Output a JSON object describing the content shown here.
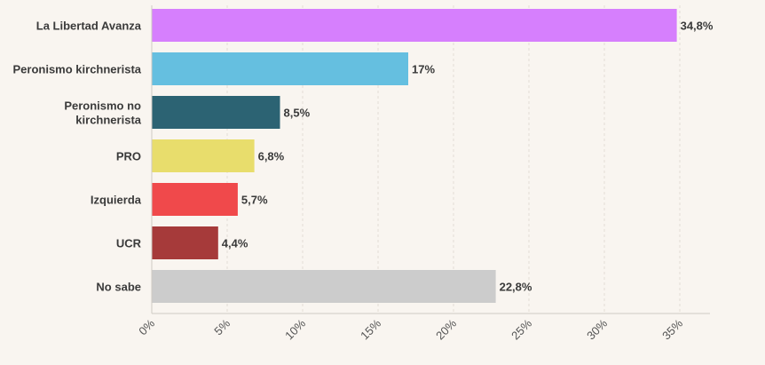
{
  "chart_data": {
    "type": "bar",
    "orientation": "horizontal",
    "title": "",
    "xlabel": "",
    "ylabel": "",
    "xlim": [
      0,
      37
    ],
    "grid": true,
    "categories": [
      "La Libertad Avanza",
      "Peronismo kirchnerista",
      "Peronismo no kirchnerista",
      "PRO",
      "Izquierda",
      "UCR",
      "No sabe"
    ],
    "values": [
      34.8,
      17,
      8.5,
      6.8,
      5.7,
      4.4,
      22.8
    ],
    "value_labels": [
      "34,8%",
      "17%",
      "8,5%",
      "6,8%",
      "5,7%",
      "4,4%",
      "22,8%"
    ],
    "colors": [
      "#d67ffd",
      "#65bfe0",
      "#2c6373",
      "#e8dd6c",
      "#f0494b",
      "#a63a3a",
      "#cccccc"
    ],
    "x_ticks": [
      0,
      5,
      10,
      15,
      20,
      25,
      30,
      35
    ],
    "x_tick_labels": [
      "0%",
      "5%",
      "10%",
      "15%",
      "20%",
      "25%",
      "30%",
      "35%"
    ],
    "category_label_lines": [
      [
        "La Libertad Avanza"
      ],
      [
        "Peronismo kirchnerista"
      ],
      [
        "Peronismo no",
        "kirchnerista"
      ],
      [
        "PRO"
      ],
      [
        "Izquierda"
      ],
      [
        "UCR"
      ],
      [
        "No sabe"
      ]
    ]
  }
}
